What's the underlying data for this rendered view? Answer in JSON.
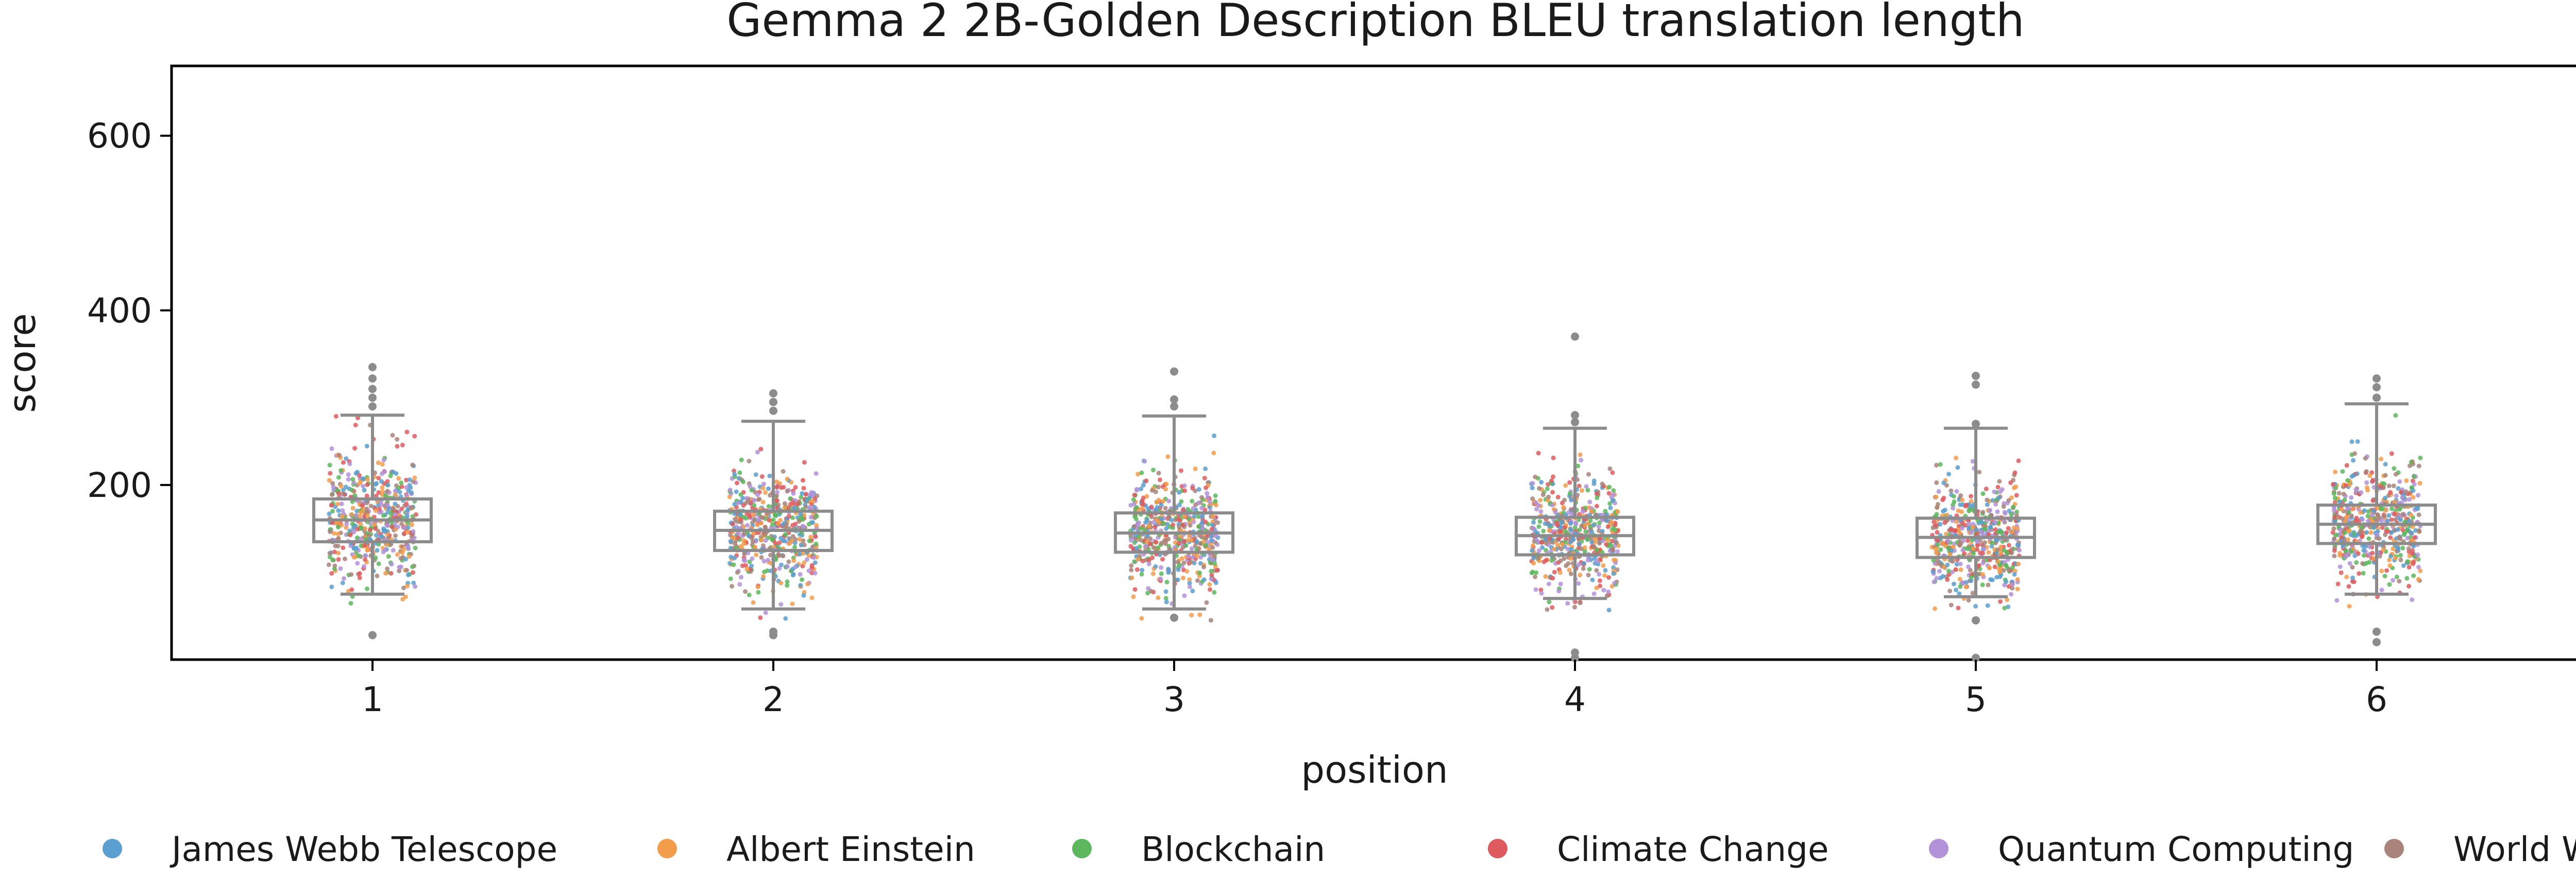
{
  "chart_data": {
    "type": "box+strip",
    "title": "Gemma 2 2B-Golden Description BLEU translation length",
    "xlabel": "position",
    "ylabel": "score",
    "ylim": [
      0,
      680
    ],
    "y_ticks": [
      200,
      400,
      600
    ],
    "categories": [
      "1",
      "2",
      "3",
      "4",
      "5",
      "6"
    ],
    "grid": false,
    "legend_position": "bottom",
    "boxes": [
      {
        "position": "1",
        "q1": 135,
        "median": 160,
        "q3": 184,
        "whisker_low": 75,
        "whisker_high": 280,
        "outliers": [
          28,
          290,
          300,
          310,
          322,
          335
        ]
      },
      {
        "position": "2",
        "q1": 125,
        "median": 148,
        "q3": 170,
        "whisker_low": 58,
        "whisker_high": 273,
        "outliers": [
          28,
          32,
          285,
          295,
          305
        ]
      },
      {
        "position": "3",
        "q1": 123,
        "median": 145,
        "q3": 168,
        "whisker_low": 58,
        "whisker_high": 279,
        "outliers": [
          48,
          290,
          298,
          330
        ]
      },
      {
        "position": "4",
        "q1": 120,
        "median": 142,
        "q3": 163,
        "whisker_low": 70,
        "whisker_high": 265,
        "outliers": [
          2,
          8,
          272,
          280,
          370
        ]
      },
      {
        "position": "5",
        "q1": 117,
        "median": 140,
        "q3": 162,
        "whisker_low": 72,
        "whisker_high": 265,
        "outliers": [
          2,
          45,
          270,
          315,
          325
        ]
      },
      {
        "position": "6",
        "q1": 133,
        "median": 155,
        "q3": 177,
        "whisker_low": 75,
        "whisker_high": 293,
        "outliers": [
          20,
          32,
          300,
          312,
          322
        ]
      }
    ],
    "series": [
      {
        "name": "James Webb Telescope",
        "color": "#5a9fcf"
      },
      {
        "name": "Albert Einstein",
        "color": "#f39c4b"
      },
      {
        "name": "Blockchain",
        "color": "#5cb85c"
      },
      {
        "name": "Climate Change",
        "color": "#de5a5e"
      },
      {
        "name": "Quantum Computing",
        "color": "#b292d9"
      },
      {
        "name": "World War II",
        "color": "#a8847a"
      }
    ]
  }
}
